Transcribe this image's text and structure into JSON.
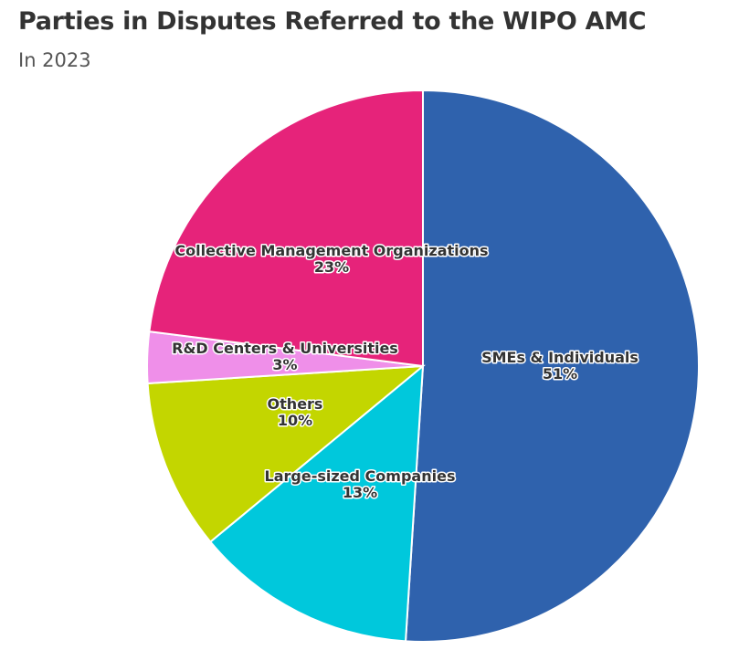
{
  "chart_data": {
    "type": "pie",
    "title": "Parties in Disputes Referred to the WIPO AMC",
    "subtitle": "In 2023",
    "slices": [
      {
        "label": "SMEs & Individuals",
        "value": 51,
        "value_label": "51%",
        "color": "#2f62ad"
      },
      {
        "label": "Large-sized Companies",
        "value": 13,
        "value_label": "13%",
        "color": "#00c8dc"
      },
      {
        "label": "Others",
        "value": 10,
        "value_label": "10%",
        "color": "#c3d600"
      },
      {
        "label": "R&D Centers & Universities",
        "value": 3,
        "value_label": "3%",
        "color": "#ef8fe9"
      },
      {
        "label": "Collective Management Organizations",
        "value": 23,
        "value_label": "23%",
        "color": "#e6237a"
      }
    ]
  }
}
